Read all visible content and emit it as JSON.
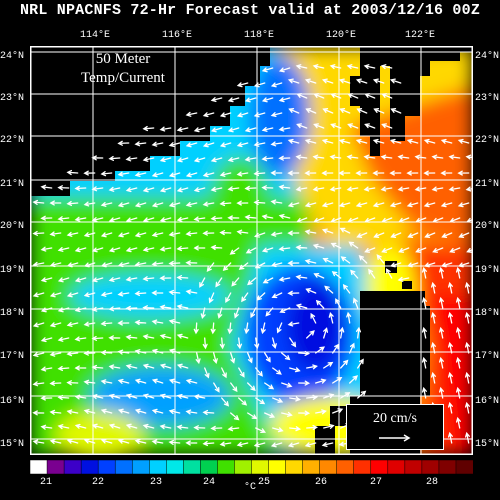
{
  "title": "NRL NPACNFS 72-Hr Forecast valid at 2003/12/16 00Z",
  "panel_label_line1": "50 Meter",
  "panel_label_line2": "Temp/Current",
  "lon_labels": [
    "114°E",
    "116°E",
    "118°E",
    "120°E",
    "122°E"
  ],
  "lat_labels": [
    "24°N",
    "23°N",
    "22°N",
    "21°N",
    "20°N",
    "19°N",
    "18°N",
    "17°N",
    "16°N",
    "15°N"
  ],
  "reference_vector": "20 cm/s",
  "colorbar": {
    "ticks": [
      "21",
      "22",
      "23",
      "24",
      "25",
      "26",
      "27",
      "28"
    ],
    "unit": "°C",
    "colors": [
      "#ffffff",
      "#7a0090",
      "#3c00c8",
      "#0010e0",
      "#0040ff",
      "#0070ff",
      "#00a0ff",
      "#00d0ff",
      "#00e8e8",
      "#00e0a0",
      "#00d050",
      "#40e000",
      "#a0f000",
      "#e0f800",
      "#ffff00",
      "#ffd800",
      "#ffb000",
      "#ff8800",
      "#ff6000",
      "#ff3000",
      "#ff0000",
      "#e00000",
      "#c00000",
      "#a00000",
      "#800000",
      "#600000"
    ]
  },
  "colors": {
    "land": "#000000",
    "frame": "#ffffff",
    "arrow": "#ffffff"
  }
}
